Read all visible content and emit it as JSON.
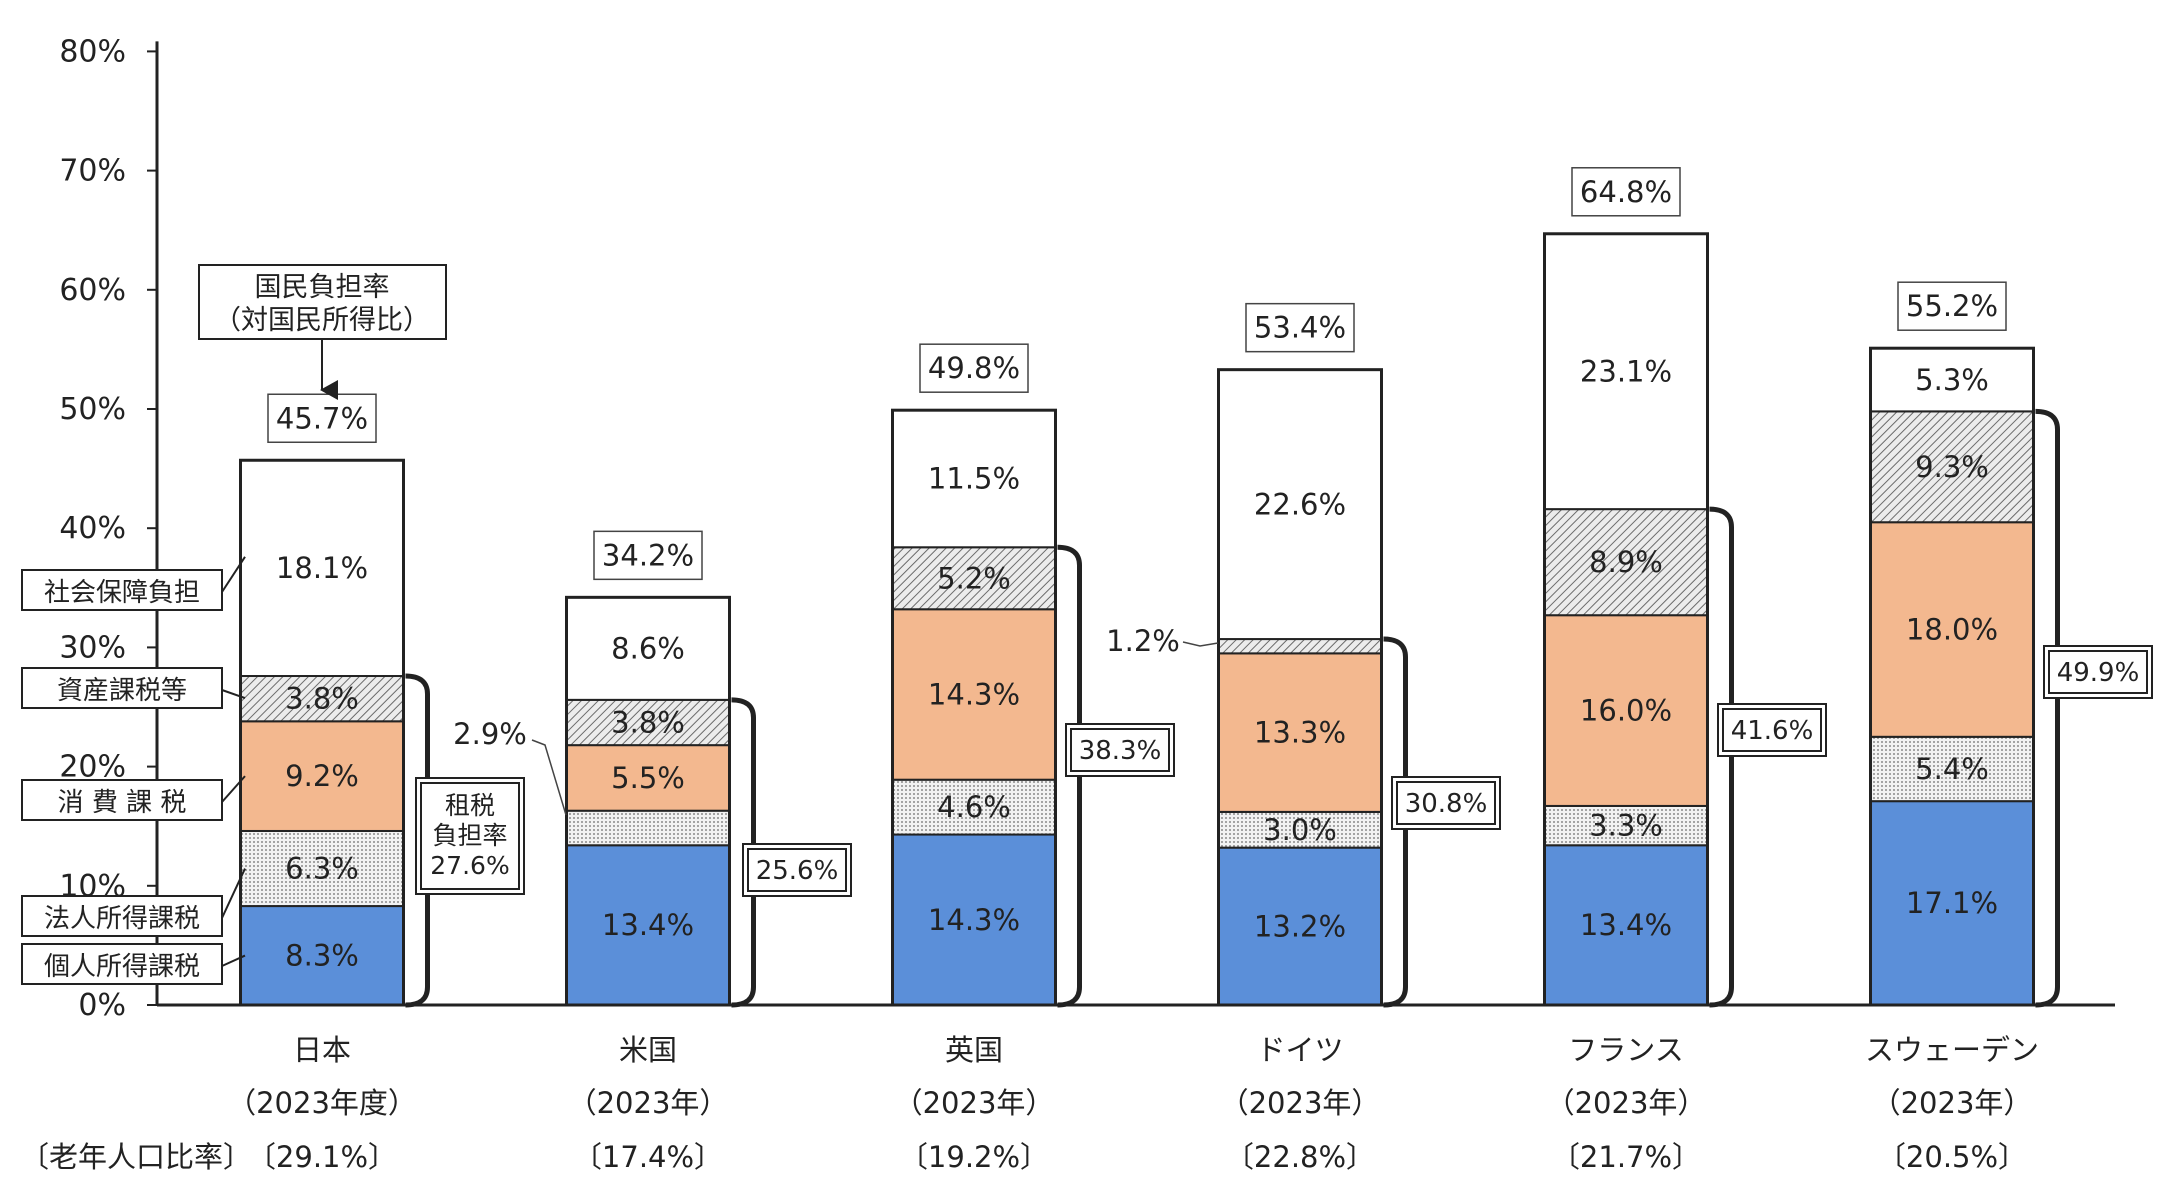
{
  "chart_data": {
    "type": "bar",
    "stacked": true,
    "categories": [
      "日本",
      "米国",
      "英国",
      "ドイツ",
      "フランス",
      "スウェーデン"
    ],
    "years": [
      "（2023年度）",
      "（2023年）",
      "（2023年）",
      "（2023年）",
      "（2023年）",
      "（2023年）"
    ],
    "aging_label": "〔老年人口比率〕",
    "aging_rates": [
      "〔29.1%〕",
      "〔17.4%〕",
      "〔19.2%〕",
      "〔22.8%〕",
      "〔21.7%〕",
      "〔20.5%〕"
    ],
    "yticks": [
      "0%",
      "10%",
      "20%",
      "30%",
      "40%",
      "50%",
      "60%",
      "70%",
      "80%"
    ],
    "ylim": [
      0,
      80
    ],
    "series": [
      {
        "name": "個人所得課税",
        "color": "#5b8fd9",
        "values": [
          8.3,
          13.4,
          14.3,
          13.2,
          13.4,
          17.1
        ],
        "labels": [
          "8.3%",
          "13.4%",
          "14.3%",
          "13.2%",
          "13.4%",
          "17.1%"
        ]
      },
      {
        "name": "法人所得課税",
        "color": "#eeeeee",
        "values": [
          6.3,
          2.9,
          4.6,
          3.0,
          3.3,
          5.4
        ],
        "labels": [
          "6.3%",
          "",
          "4.6%",
          "3.0%",
          "3.3%",
          "5.4%"
        ]
      },
      {
        "name": "消 費 課 税",
        "color": "#f3b88f",
        "values": [
          9.2,
          5.5,
          14.3,
          13.3,
          16.0,
          18.0
        ],
        "labels": [
          "9.2%",
          "5.5%",
          "14.3%",
          "13.3%",
          "16.0%",
          "18.0%"
        ]
      },
      {
        "name": "資産課税等",
        "color": "#cfcfcf",
        "values": [
          3.8,
          3.8,
          5.2,
          1.2,
          8.9,
          9.3
        ],
        "labels": [
          "3.8%",
          "3.8%",
          "5.2%",
          "",
          "8.9%",
          "9.3%"
        ]
      },
      {
        "name": "社会保障負担",
        "color": "#ffffff",
        "values": [
          18.1,
          8.6,
          11.5,
          22.6,
          23.1,
          5.3
        ],
        "labels": [
          "18.1%",
          "8.6%",
          "11.5%",
          "22.6%",
          "23.1%",
          "5.3%"
        ]
      }
    ],
    "totals": [
      "45.7%",
      "34.2%",
      "49.8%",
      "53.4%",
      "64.8%",
      "55.2%"
    ],
    "tax_burden": [
      "27.6%",
      "25.6%",
      "38.3%",
      "30.8%",
      "41.6%",
      "49.9%"
    ],
    "callouts": {
      "us_corp": "2.9%",
      "de_asset": "1.2%"
    },
    "annotations": {
      "national_burden_line1": "国民負担率",
      "national_burden_line2": "（対国民所得比）",
      "tax_burden_line1": "租税",
      "tax_burden_line2": "負担率"
    }
  }
}
